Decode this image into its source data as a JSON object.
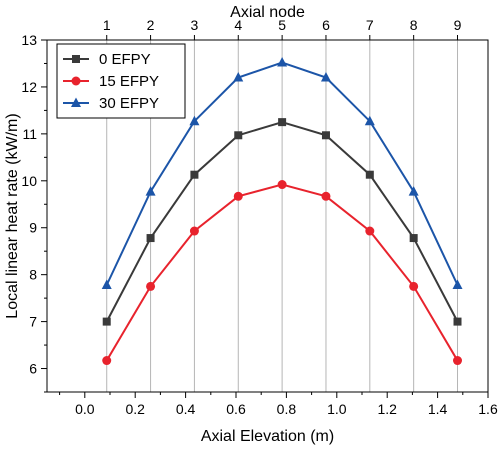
{
  "chart_data": {
    "type": "line",
    "xlabel": "Axial Elevation (m)",
    "ylabel": "Local linear heat rate (kW/m)",
    "top_axis_label": "Axial node",
    "x": [
      0.087,
      0.261,
      0.435,
      0.609,
      0.783,
      0.957,
      1.131,
      1.305,
      1.479
    ],
    "nodes": [
      "1",
      "2",
      "3",
      "4",
      "5",
      "6",
      "7",
      "8",
      "9"
    ],
    "xlim": [
      -0.15,
      1.6
    ],
    "ylim": [
      5.5,
      13
    ],
    "xticks": [
      "0.0",
      "0.2",
      "0.4",
      "0.6",
      "0.8",
      "1.0",
      "1.2",
      "1.4",
      "1.6"
    ],
    "yticks": [
      "6",
      "7",
      "8",
      "9",
      "10",
      "11",
      "12",
      "13"
    ],
    "grid": "vertical lines at axial nodes",
    "legend_position": "top-left",
    "series": [
      {
        "name": "0 EFPY",
        "color": "#3a3a3a",
        "marker": "square",
        "values": [
          7.0,
          8.78,
          10.13,
          10.97,
          11.25,
          10.97,
          10.13,
          8.78,
          7.0
        ]
      },
      {
        "name": "15 EFPY",
        "color": "#e8232d",
        "marker": "circle",
        "values": [
          6.17,
          7.75,
          8.93,
          9.67,
          9.92,
          9.67,
          8.93,
          7.75,
          6.17
        ]
      },
      {
        "name": "30 EFPY",
        "color": "#1c55a8",
        "marker": "triangle",
        "values": [
          7.78,
          9.77,
          11.27,
          12.2,
          12.52,
          12.2,
          11.27,
          9.77,
          7.78
        ]
      }
    ]
  }
}
